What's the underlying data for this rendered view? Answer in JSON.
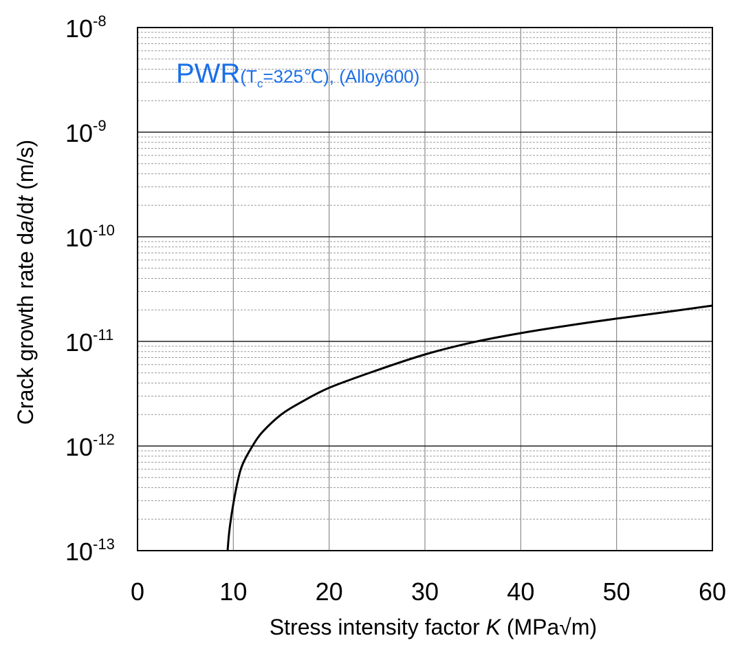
{
  "chart_data": {
    "type": "line",
    "annotation": {
      "main": "PWR",
      "paren_open": "(T",
      "sub": "c",
      "rest": "=325℃), (Alloy600)"
    },
    "xlabel": {
      "prefix": "Stress intensity factor ",
      "var": "K",
      "suffix": " (MPa√m)"
    },
    "ylabel": {
      "prefix": "Crack growth rate d",
      "var1": "a",
      "mid": "/d",
      "var2": "t",
      "suffix": "  (m/s)"
    },
    "xlim": [
      0,
      60
    ],
    "ylim": [
      1e-13,
      1e-08
    ],
    "yscale": "log",
    "grid": true,
    "x_ticks": [
      "0",
      "10",
      "20",
      "30",
      "40",
      "50",
      "60"
    ],
    "y_ticks": [
      {
        "base": "10",
        "exp": "-8"
      },
      {
        "base": "10",
        "exp": "-9"
      },
      {
        "base": "10",
        "exp": "-10"
      },
      {
        "base": "10",
        "exp": "-11"
      },
      {
        "base": "10",
        "exp": "-12"
      },
      {
        "base": "10",
        "exp": "-13"
      }
    ],
    "series": [
      {
        "color": "#000000",
        "x": [
          9.4,
          9.6,
          10.0,
          10.5,
          11.0,
          12.0,
          13.0,
          15.0,
          17.0,
          20.0,
          25.0,
          30.0,
          35.0,
          40.0,
          45.0,
          50.0,
          55.0,
          60.0
        ],
        "y": [
          1e-13,
          1.6e-13,
          2.8e-13,
          4.8e-13,
          6.8e-13,
          1e-12,
          1.35e-12,
          2e-12,
          2.6e-12,
          3.6e-12,
          5.3e-12,
          7.5e-12,
          9.8e-12,
          1.2e-11,
          1.42e-11,
          1.65e-11,
          1.9e-11,
          2.2e-11
        ]
      }
    ]
  }
}
